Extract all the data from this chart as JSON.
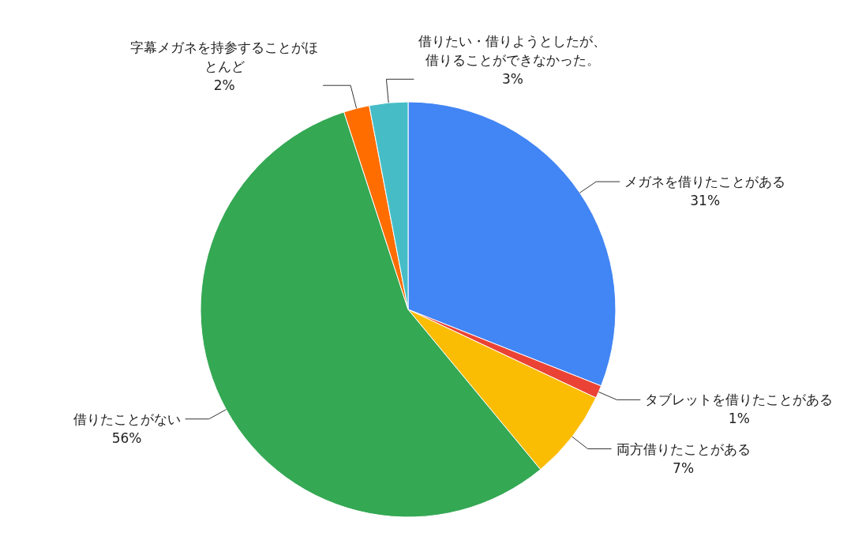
{
  "chart_data": {
    "type": "pie",
    "categories": [
      "メガネを借りたことがある",
      "タブレットを借りたことがある",
      "両方借りたことがある",
      "借りたことがない",
      "字幕メガネを持参することがほとんど",
      "借りたい・借りようとしたが、借りることができなかった。"
    ],
    "values": [
      31,
      1,
      7,
      56,
      2,
      3
    ],
    "value_labels": [
      "31%",
      "1%",
      "7%",
      "56%",
      "2%",
      "3%"
    ],
    "colors": [
      "#4285f4",
      "#ea4335",
      "#fbbc04",
      "#34a853",
      "#ff6d01",
      "#46bdc6"
    ]
  }
}
